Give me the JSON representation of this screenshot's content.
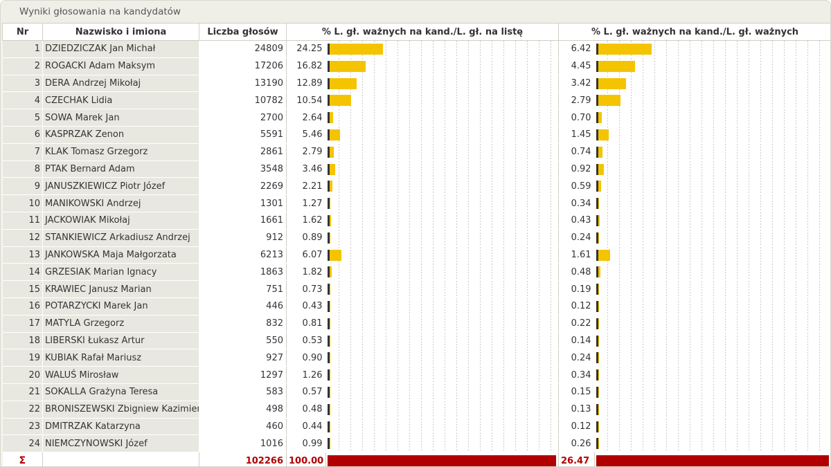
{
  "title": "Wyniki głosowania na kandydatów",
  "headers": {
    "nr": "Nr",
    "name": "Nazwisko i imiona",
    "votes": "Liczba głosów",
    "pct_list": "% L. gł. ważnych na kand./L. gł. na listę",
    "pct_valid": "% L. gł. ważnych na kand./L. gł. ważnych"
  },
  "colors": {
    "bar": "#f4c400",
    "total_bar": "#b20000",
    "total_text": "#b00000"
  },
  "candidates": [
    {
      "nr": "1",
      "name": "DZIEDZICZAK Jan Michał",
      "votes": "24809",
      "pct_list": "24.25",
      "pct_valid": "6.42"
    },
    {
      "nr": "2",
      "name": "ROGACKI Adam Maksym",
      "votes": "17206",
      "pct_list": "16.82",
      "pct_valid": "4.45"
    },
    {
      "nr": "3",
      "name": "DERA Andrzej Mikołaj",
      "votes": "13190",
      "pct_list": "12.89",
      "pct_valid": "3.42"
    },
    {
      "nr": "4",
      "name": "CZECHAK Lidia",
      "votes": "10782",
      "pct_list": "10.54",
      "pct_valid": "2.79"
    },
    {
      "nr": "5",
      "name": "SOWA Marek Jan",
      "votes": "2700",
      "pct_list": "2.64",
      "pct_valid": "0.70"
    },
    {
      "nr": "6",
      "name": "KASPRZAK Zenon",
      "votes": "5591",
      "pct_list": "5.46",
      "pct_valid": "1.45"
    },
    {
      "nr": "7",
      "name": "KLAK Tomasz Grzegorz",
      "votes": "2861",
      "pct_list": "2.79",
      "pct_valid": "0.74"
    },
    {
      "nr": "8",
      "name": "PTAK Bernard Adam",
      "votes": "3548",
      "pct_list": "3.46",
      "pct_valid": "0.92"
    },
    {
      "nr": "9",
      "name": "JANUSZKIEWICZ Piotr Józef",
      "votes": "2269",
      "pct_list": "2.21",
      "pct_valid": "0.59"
    },
    {
      "nr": "10",
      "name": "MANIKOWSKI Andrzej",
      "votes": "1301",
      "pct_list": "1.27",
      "pct_valid": "0.34"
    },
    {
      "nr": "11",
      "name": "JACKOWIAK Mikołaj",
      "votes": "1661",
      "pct_list": "1.62",
      "pct_valid": "0.43"
    },
    {
      "nr": "12",
      "name": "STANKIEWICZ Arkadiusz Andrzej",
      "votes": "912",
      "pct_list": "0.89",
      "pct_valid": "0.24"
    },
    {
      "nr": "13",
      "name": "JANKOWSKA Maja Małgorzata",
      "votes": "6213",
      "pct_list": "6.07",
      "pct_valid": "1.61"
    },
    {
      "nr": "14",
      "name": "GRZESIAK Marian Ignacy",
      "votes": "1863",
      "pct_list": "1.82",
      "pct_valid": "0.48"
    },
    {
      "nr": "15",
      "name": "KRAWIEC Janusz Marian",
      "votes": "751",
      "pct_list": "0.73",
      "pct_valid": "0.19"
    },
    {
      "nr": "16",
      "name": "POTARZYCKI Marek Jan",
      "votes": "446",
      "pct_list": "0.43",
      "pct_valid": "0.12"
    },
    {
      "nr": "17",
      "name": "MATYLA Grzegorz",
      "votes": "832",
      "pct_list": "0.81",
      "pct_valid": "0.22"
    },
    {
      "nr": "18",
      "name": "LIBERSKI Łukasz Artur",
      "votes": "550",
      "pct_list": "0.53",
      "pct_valid": "0.14"
    },
    {
      "nr": "19",
      "name": "KUBIAK Rafał Mariusz",
      "votes": "927",
      "pct_list": "0.90",
      "pct_valid": "0.24"
    },
    {
      "nr": "20",
      "name": "WALUŚ Mirosław",
      "votes": "1297",
      "pct_list": "1.26",
      "pct_valid": "0.34"
    },
    {
      "nr": "21",
      "name": "SOKALLA Grażyna Teresa",
      "votes": "583",
      "pct_list": "0.57",
      "pct_valid": "0.15"
    },
    {
      "nr": "22",
      "name": "BRONISZEWSKI Zbigniew Kazimierz",
      "votes": "498",
      "pct_list": "0.48",
      "pct_valid": "0.13"
    },
    {
      "nr": "23",
      "name": "DMITRZAK Katarzyna",
      "votes": "460",
      "pct_list": "0.44",
      "pct_valid": "0.12"
    },
    {
      "nr": "24",
      "name": "NIEMCZYNOWSKI Józef",
      "votes": "1016",
      "pct_list": "0.99",
      "pct_valid": "0.26"
    }
  ],
  "total": {
    "symbol": "Σ",
    "votes": "102266",
    "pct_list": "100.00",
    "pct_valid": "26.47"
  }
}
